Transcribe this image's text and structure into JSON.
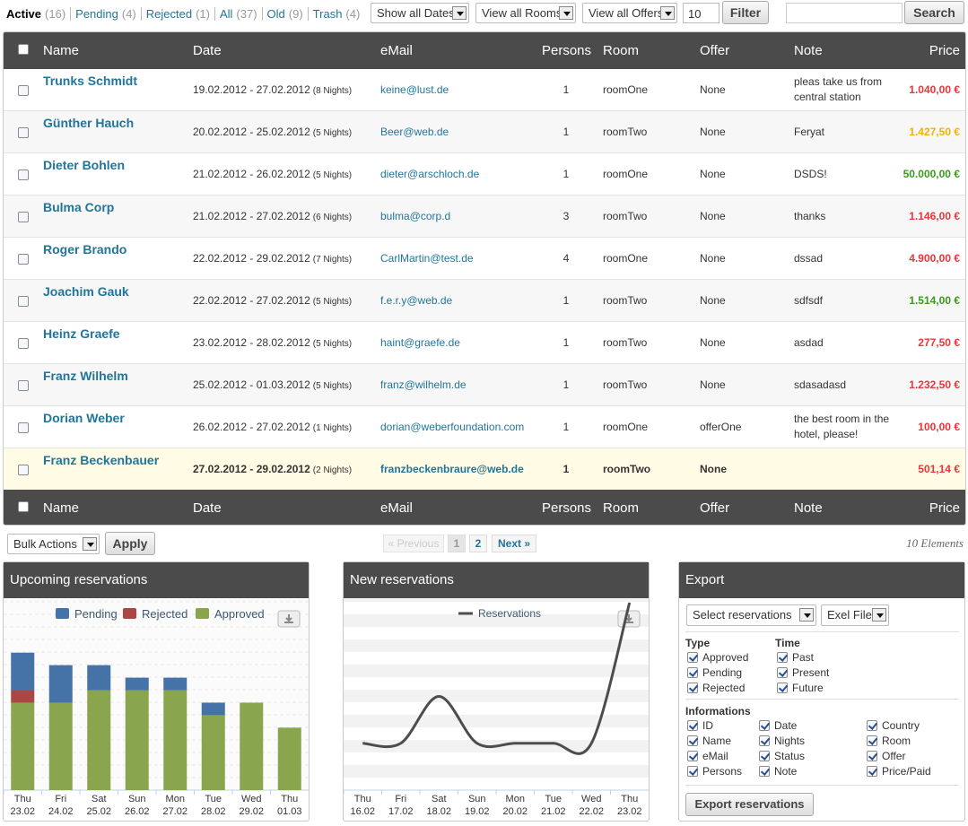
{
  "status_links": [
    {
      "label": "Active",
      "count": "(16)",
      "current": true
    },
    {
      "label": "Pending",
      "count": "(4)"
    },
    {
      "label": "Rejected",
      "count": "(1)"
    },
    {
      "label": "All",
      "count": "(37)"
    },
    {
      "label": "Old",
      "count": "(9)"
    },
    {
      "label": "Trash",
      "count": "(4)"
    }
  ],
  "filters": {
    "dates": "Show all Dates",
    "rooms": "View all Rooms",
    "offers": "View all Offers",
    "per_page": "10",
    "filter_button": "Filter",
    "search_button": "Search"
  },
  "table": {
    "columns": [
      "Name",
      "Date",
      "eMail",
      "Persons",
      "Room",
      "Offer",
      "Note",
      "Price"
    ],
    "rows": [
      {
        "name": "Trunks Schmidt",
        "date": "19.02.2012 - 27.02.2012",
        "nights": "(8 Nights)",
        "email": "keine@lust.de",
        "persons": 1,
        "room": "roomOne",
        "offer": "None",
        "note": "pleas take us from central station",
        "price": "1.040,00 €",
        "price_color": "#e8373a"
      },
      {
        "name": "Günther Hauch",
        "date": "20.02.2012 - 25.02.2012",
        "nights": "(5 Nights)",
        "email": "Beer@web.de",
        "persons": 1,
        "room": "roomTwo",
        "offer": "None",
        "note": "Feryat",
        "price": "1.427,50 €",
        "price_color": "#f0b400"
      },
      {
        "name": "Dieter Bohlen",
        "date": "21.02.2012 - 26.02.2012",
        "nights": "(5 Nights)",
        "email": "dieter@arschloch.de",
        "persons": 1,
        "room": "roomOne",
        "offer": "None",
        "note": "DSDS!",
        "price": "50.000,00 €",
        "price_color": "#3a9a1a"
      },
      {
        "name": "Bulma Corp",
        "date": "21.02.2012 - 27.02.2012",
        "nights": "(6 Nights)",
        "email": "bulma@corp.d",
        "persons": 3,
        "room": "roomTwo",
        "offer": "None",
        "note": "thanks",
        "price": "1.146,00 €",
        "price_color": "#e8373a"
      },
      {
        "name": "Roger Brando",
        "date": "22.02.2012 - 29.02.2012",
        "nights": "(7 Nights)",
        "email": "CarlMartin@test.de",
        "persons": 4,
        "room": "roomOne",
        "offer": "None",
        "note": "dssad",
        "price": "4.900,00 €",
        "price_color": "#e8373a"
      },
      {
        "name": "Joachim Gauk",
        "date": "22.02.2012 - 27.02.2012",
        "nights": "(5 Nights)",
        "email": "f.e.r.y@web.de",
        "persons": 1,
        "room": "roomTwo",
        "offer": "None",
        "note": "sdfsdf",
        "price": "1.514,00 €",
        "price_color": "#3a9a1a"
      },
      {
        "name": "Heinz Graefe",
        "date": "23.02.2012 - 28.02.2012",
        "nights": "(5 Nights)",
        "email": "haint@graefe.de",
        "persons": 1,
        "room": "roomTwo",
        "offer": "None",
        "note": "asdad",
        "price": "277,50 €",
        "price_color": "#e8373a"
      },
      {
        "name": "Franz Wilhelm",
        "date": "25.02.2012 - 01.03.2012",
        "nights": "(5 Nights)",
        "email": "franz@wilhelm.de",
        "persons": 1,
        "room": "roomTwo",
        "offer": "None",
        "note": "sdasadasd",
        "price": "1.232,50 €",
        "price_color": "#e8373a"
      },
      {
        "name": "Dorian Weber",
        "date": "26.02.2012 - 27.02.2012",
        "nights": "(1 Nights)",
        "email": "dorian@weberfoundation.com",
        "persons": 1,
        "room": "roomOne",
        "offer": "offerOne",
        "note": "the best room in the hotel, please!",
        "price": "100,00 €",
        "price_color": "#e8373a"
      },
      {
        "name": "Franz Beckenbauer",
        "date": "27.02.2012 - 29.02.2012",
        "nights": "(2 Nights)",
        "email": "franzbeckenbraure@web.de",
        "persons": 1,
        "room": "roomTwo",
        "offer": "None",
        "price": "501,14 €",
        "price_color": "#e8373a",
        "highlight": true
      }
    ]
  },
  "pagination": {
    "bulk": "Bulk Actions",
    "apply": "Apply",
    "previous": "« Previous",
    "pages": [
      "1",
      "2"
    ],
    "next": "Next »",
    "count": "10 Elements"
  },
  "upcoming": {
    "title": "Upcoming reservations",
    "chart": {
      "type": "stacked_bar",
      "categories": [
        "Thu 23.02",
        "Fri 24.02",
        "Sat 25.02",
        "Sun 26.02",
        "Mon 27.02",
        "Tue 28.02",
        "Wed 29.02",
        "Thu 01.03"
      ],
      "series": [
        {
          "name": "Pending",
          "color": "#4572a7",
          "values": [
            3,
            3,
            2,
            1,
            1,
            1,
            0,
            0
          ]
        },
        {
          "name": "Rejected",
          "color": "#aa4643",
          "values": [
            1,
            0,
            0,
            0,
            0,
            0,
            0,
            0
          ]
        },
        {
          "name": "Approved",
          "color": "#89a54e",
          "values": [
            7,
            7,
            8,
            8,
            8,
            6,
            7,
            5
          ]
        }
      ],
      "ylim": [
        0,
        15
      ]
    }
  },
  "new_reservations": {
    "title": "New reservations",
    "chart": {
      "type": "line",
      "categories": [
        "Thu 16.02",
        "Fri 17.02",
        "Sat 18.02",
        "Sun 19.02",
        "Mon 20.02",
        "Tue 21.02",
        "Wed 22.02",
        "Thu 23.02"
      ],
      "series": [
        {
          "name": "Reservations",
          "color": "#4d4d4d",
          "values": [
            1,
            1,
            3,
            1,
            1,
            1,
            1,
            7
          ]
        }
      ],
      "ylim": [
        -1,
        7
      ]
    }
  },
  "export": {
    "title": "Export",
    "select": "Select reservations",
    "format": "Exel File",
    "type_label": "Type",
    "types": [
      "Approved",
      "Pending",
      "Rejected"
    ],
    "time_label": "Time",
    "times": [
      "Past",
      "Present",
      "Future"
    ],
    "info_label": "Informations",
    "infos": [
      "ID",
      "Name",
      "eMail",
      "Persons",
      "Date",
      "Nights",
      "Status",
      "Note",
      "Country",
      "Room",
      "Offer",
      "Price/Paid"
    ],
    "button": "Export reservations"
  }
}
